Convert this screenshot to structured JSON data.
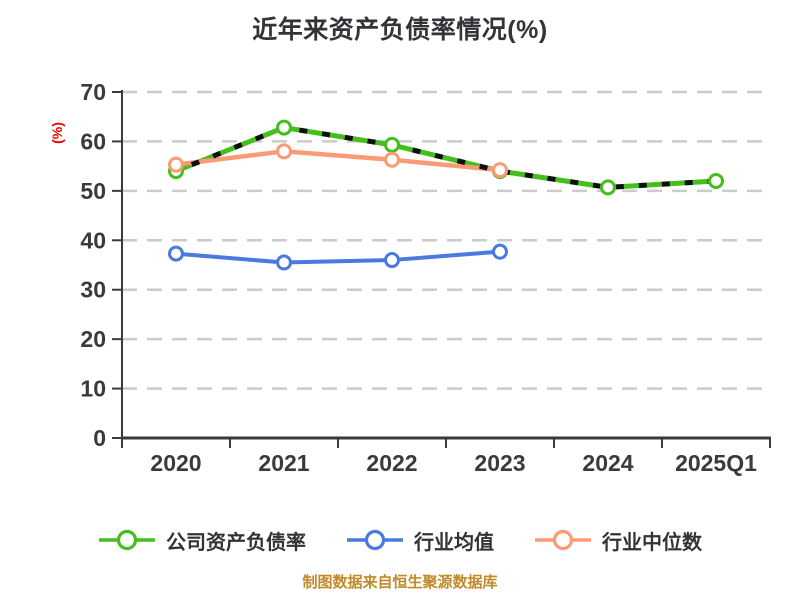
{
  "footer_note": "制图数据来自恒生聚源数据库",
  "colors": {
    "title_text": "#333338",
    "axis_text": "#3A3A3A",
    "axis_line": "#3A3A3A",
    "gridline": "#CBCBCB",
    "ylabel_red": "#F10000",
    "footer_gold": "#C08A28",
    "marker_fill": "#FFFFFF",
    "dash_overlay": "#0F0F0F",
    "company_green": "#46BE1E",
    "industry_mean_blue": "#4A79E0",
    "industry_median_orange": "#FB9A76"
  },
  "chart_data": {
    "type": "line",
    "title": "近年来资产负债率情况(%)",
    "categories": [
      "2020",
      "2021",
      "2022",
      "2023",
      "2024",
      "2025Q1"
    ],
    "xlabel": "",
    "ylabel": "(%)",
    "ylim": [
      0,
      70
    ],
    "ytick_interval": 10,
    "ytick_labels": [
      "0",
      "10",
      "20",
      "30",
      "40",
      "50",
      "60",
      "70"
    ],
    "grid": true,
    "grid_style": "dashed",
    "legend_position": "bottom",
    "series": [
      {
        "name": "公司资产负债率",
        "color": "#46BE1E",
        "marker": "circle-open",
        "line_style": "solid-with-black-dash-overlay",
        "values": [
          54.0,
          62.8,
          59.3,
          54.0,
          50.7,
          52.0
        ]
      },
      {
        "name": "行业均值",
        "color": "#4A79E0",
        "marker": "circle-open",
        "line_style": "solid",
        "values": [
          37.3,
          35.5,
          36.0,
          37.7
        ]
      },
      {
        "name": "行业中位数",
        "color": "#FB9A76",
        "marker": "circle-open",
        "line_style": "solid",
        "values": [
          55.3,
          58.0,
          56.3,
          54.2
        ]
      }
    ]
  }
}
